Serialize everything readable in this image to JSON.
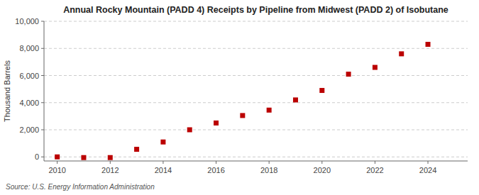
{
  "chart_data": {
    "type": "scatter",
    "title": "Annual Rocky Mountain (PADD 4) Receipts by Pipeline from Midwest (PADD 2) of Isobutane",
    "ylabel": "Thousand Barrels",
    "source": "Source: U.S. Energy Information Administration",
    "x": [
      2010,
      2011,
      2012,
      2013,
      2014,
      2015,
      2016,
      2017,
      2018,
      2019,
      2020,
      2021,
      2022,
      2023,
      2024
    ],
    "values": [
      0,
      -50,
      -50,
      560,
      1100,
      2000,
      2500,
      3050,
      3450,
      4200,
      4900,
      6100,
      6600,
      7600,
      8300
    ],
    "color": "#bb0000",
    "marker": "square",
    "xlim": [
      2009.5,
      2025.5
    ],
    "ylim": [
      -300,
      10000
    ],
    "xticks": [
      2010,
      2012,
      2014,
      2016,
      2018,
      2020,
      2022,
      2024
    ],
    "yticks": [
      0,
      {
        "value": 2000,
        "label": "2,000"
      },
      {
        "value": 4000,
        "label": "4,000"
      },
      {
        "value": 6000,
        "label": "6,000"
      },
      {
        "value": 8000,
        "label": "8,000"
      },
      {
        "value": 10000,
        "label": "10,000"
      }
    ],
    "grid": true
  }
}
